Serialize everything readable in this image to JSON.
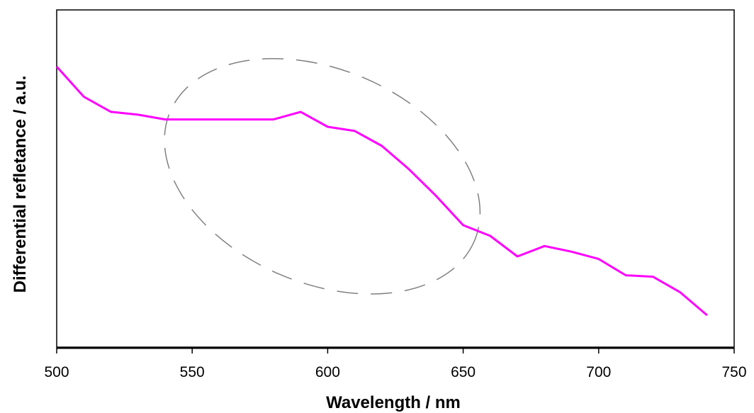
{
  "chart_data": {
    "type": "line",
    "xlabel": "Wavelength / nm",
    "ylabel": "Differential refletance / a.u.",
    "xlim": [
      500,
      750
    ],
    "ylim": [
      0,
      1
    ],
    "xticks": [
      "500",
      "550",
      "600",
      "650",
      "700",
      "750"
    ],
    "yticks_shown": false,
    "grid": false,
    "series": [
      {
        "color": "#ff00ff",
        "x": [
          500,
          510,
          520,
          530,
          540,
          550,
          560,
          570,
          580,
          590,
          600,
          610,
          620,
          630,
          640,
          650,
          660,
          670,
          680,
          690,
          700,
          710,
          720,
          730,
          740
        ],
        "y": [
          1.0,
          0.893,
          0.839,
          0.829,
          0.812,
          0.812,
          0.812,
          0.812,
          0.812,
          0.839,
          0.786,
          0.771,
          0.718,
          0.635,
          0.54,
          0.436,
          0.398,
          0.325,
          0.362,
          0.342,
          0.316,
          0.258,
          0.253,
          0.198,
          0.116
        ]
      }
    ],
    "annotations": [
      {
        "type": "dashed-ellipse",
        "color": "#808080",
        "center": [
          598,
          0.61
        ],
        "radius": [
          61,
          0.38
        ],
        "angle_deg": 23
      }
    ]
  }
}
